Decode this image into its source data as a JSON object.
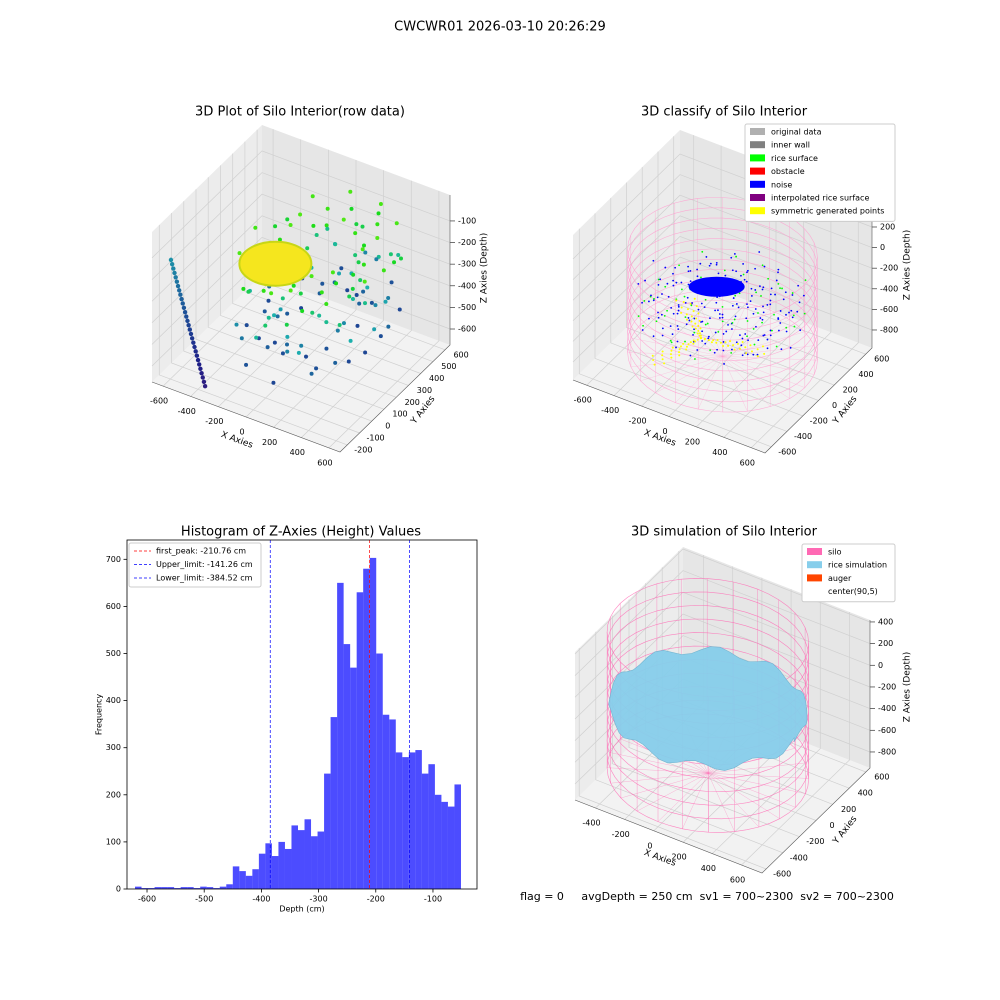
{
  "title": "CWCWR01 2026-03-10 20:26:29",
  "footer": "flag = 0     avgDepth = 250 cm  sv1 = 700~2300  sv2 = 700~2300",
  "chart_data": [
    {
      "type": "scatter3d",
      "title": "3D Plot of Silo Interior(row data)",
      "xlabel": "X Axies",
      "ylabel": "Y Axies",
      "zlabel": "Z Axies (Depth)",
      "xlim": [
        -680,
        680
      ],
      "ylim": [
        -260,
        640
      ],
      "zlim": [
        -674,
        20
      ],
      "xticks": [
        -600,
        -400,
        -200,
        0,
        200,
        400,
        600
      ],
      "yticks": [
        -200,
        -100,
        0,
        100,
        200,
        300,
        400,
        500,
        600
      ],
      "zticks": [
        -600,
        -500,
        -400,
        -300,
        -200,
        -100
      ]
    },
    {
      "type": "scatter3d",
      "title": "3D classify of Silo Interior",
      "xlabel": "X Axies",
      "ylabel": "Y Axies",
      "zlabel": "Z Axies (Depth)",
      "xlim": [
        -700,
        700
      ],
      "ylim": [
        -680,
        680
      ],
      "zlim": [
        -975,
        433
      ],
      "xticks": [
        -600,
        -400,
        -200,
        0,
        200,
        400,
        600
      ],
      "yticks": [
        -600,
        -400,
        -200,
        0,
        200,
        400,
        600
      ],
      "zticks": [
        -800,
        -600,
        -400,
        -200,
        0,
        200
      ],
      "legend": [
        {
          "name": "original data",
          "color": "#b0b0b0"
        },
        {
          "name": "inner wall",
          "color": "#808080"
        },
        {
          "name": "rice surface",
          "color": "#00ff00"
        },
        {
          "name": "obstacle",
          "color": "#ff0000"
        },
        {
          "name": "noise",
          "color": "#0000ff"
        },
        {
          "name": "interpolated rice surface",
          "color": "#800080"
        },
        {
          "name": "symmetric generated points",
          "color": "#ffff00"
        }
      ]
    },
    {
      "type": "histogram",
      "title": "Histogram of Z-Axies (Height) Values",
      "xlabel": "Depth (cm)",
      "ylabel": "Frequency",
      "color": "rgba(0,0,255,0.7)",
      "xlim": [
        -635,
        -23
      ],
      "ylim": [
        0,
        741
      ],
      "xticks": [
        -600,
        -500,
        -400,
        -300,
        -200,
        -100
      ],
      "yticks": [
        0,
        100,
        200,
        300,
        400,
        500,
        600,
        700
      ],
      "bins": [
        -621,
        -609.6,
        -598.2,
        -586.8,
        -575.4,
        -564,
        -552.6,
        -541.2,
        -529.8,
        -518.4,
        -507,
        -495.6,
        -484.2,
        -472.8,
        -461.4,
        -450,
        -438.6,
        -427.2,
        -415.8,
        -404.4,
        -393,
        -381.6,
        -370.2,
        -358.8,
        -347.4,
        -336,
        -324.6,
        -313.2,
        -301.8,
        -290.4,
        -279,
        -267.6,
        -256.2,
        -244.8,
        -233.4,
        -222,
        -210.6,
        -199.2,
        -187.8,
        -176.4,
        -165,
        -153.6,
        -142.2,
        -130.8,
        -119.4,
        -108,
        -96.6,
        -85.2,
        -73.8,
        -62.4,
        -51
      ],
      "counts": [
        5,
        2,
        2,
        4,
        4,
        4,
        2,
        4,
        4,
        2,
        5,
        4,
        2,
        5,
        10,
        48,
        38,
        28,
        42,
        75,
        97,
        70,
        100,
        85,
        135,
        125,
        148,
        112,
        122,
        245,
        365,
        650,
        520,
        470,
        630,
        680,
        703,
        500,
        370,
        360,
        290,
        280,
        290,
        295,
        245,
        265,
        200,
        185,
        175,
        222
      ],
      "lines": [
        {
          "label": "first_peak: -210.76 cm",
          "value": -210.76,
          "color": "#ff0000"
        },
        {
          "label": "Upper_limit: -141.26 cm",
          "value": -141.26,
          "color": "#0000ff"
        },
        {
          "label": "Lower_limit: -384.52 cm",
          "value": -384.52,
          "color": "#0000ff"
        }
      ]
    },
    {
      "type": "surface3d",
      "title": "3D simulation of Silo Interior",
      "xlabel": "X Axies",
      "ylabel": "Y Axies",
      "zlabel": "Z Axies (Depth)",
      "xlim": [
        -540,
        740
      ],
      "ylim": [
        -650,
        650
      ],
      "zlim": [
        -948,
        418
      ],
      "xticks": [
        -400,
        -200,
        0,
        200,
        400,
        600
      ],
      "yticks": [
        -600,
        -400,
        -200,
        0,
        200,
        400,
        600
      ],
      "zticks": [
        -800,
        -600,
        -400,
        -200,
        0,
        200,
        400
      ],
      "legend": [
        {
          "name": "silo",
          "color": "#ff69b4"
        },
        {
          "name": "rice simulation",
          "color": "#87ceeb"
        },
        {
          "name": "auger",
          "color": "#ff4500"
        },
        {
          "name": "center(90,5)",
          "color": "#ffffff"
        }
      ]
    }
  ]
}
